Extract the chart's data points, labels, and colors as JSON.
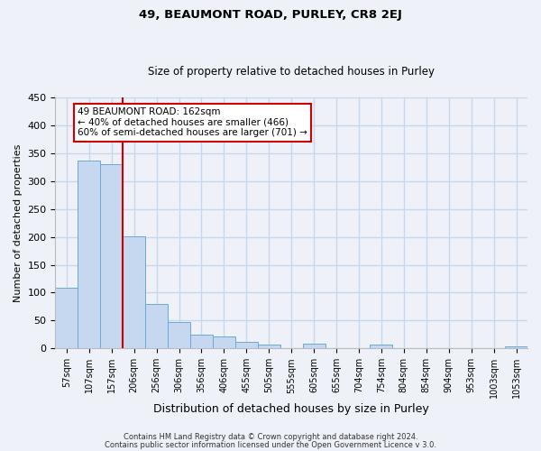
{
  "title": "49, BEAUMONT ROAD, PURLEY, CR8 2EJ",
  "subtitle": "Size of property relative to detached houses in Purley",
  "xlabel": "Distribution of detached houses by size in Purley",
  "ylabel": "Number of detached properties",
  "bar_labels": [
    "57sqm",
    "107sqm",
    "157sqm",
    "206sqm",
    "256sqm",
    "306sqm",
    "356sqm",
    "406sqm",
    "455sqm",
    "505sqm",
    "555sqm",
    "605sqm",
    "655sqm",
    "704sqm",
    "754sqm",
    "804sqm",
    "854sqm",
    "904sqm",
    "953sqm",
    "1003sqm",
    "1053sqm"
  ],
  "bar_values": [
    109,
    337,
    330,
    201,
    80,
    47,
    25,
    22,
    12,
    7,
    0,
    8,
    0,
    0,
    7,
    0,
    0,
    0,
    0,
    0,
    3
  ],
  "bar_color": "#c5d8f0",
  "bar_edge_color": "#6aaad4",
  "vline_color": "#cc0000",
  "annotation_title": "49 BEAUMONT ROAD: 162sqm",
  "annotation_line1": "← 40% of detached houses are smaller (466)",
  "annotation_line2": "60% of semi-detached houses are larger (701) →",
  "annotation_box_color": "#ffffff",
  "annotation_box_edge": "#cc0000",
  "ylim": [
    0,
    450
  ],
  "yticks": [
    0,
    50,
    100,
    150,
    200,
    250,
    300,
    350,
    400,
    450
  ],
  "footer1": "Contains HM Land Registry data © Crown copyright and database right 2024.",
  "footer2": "Contains public sector information licensed under the Open Government Licence v 3.0.",
  "bg_color": "#eef2f8",
  "grid_color": "#c8d8ec",
  "title_fontsize": 9.5,
  "subtitle_fontsize": 8.5
}
